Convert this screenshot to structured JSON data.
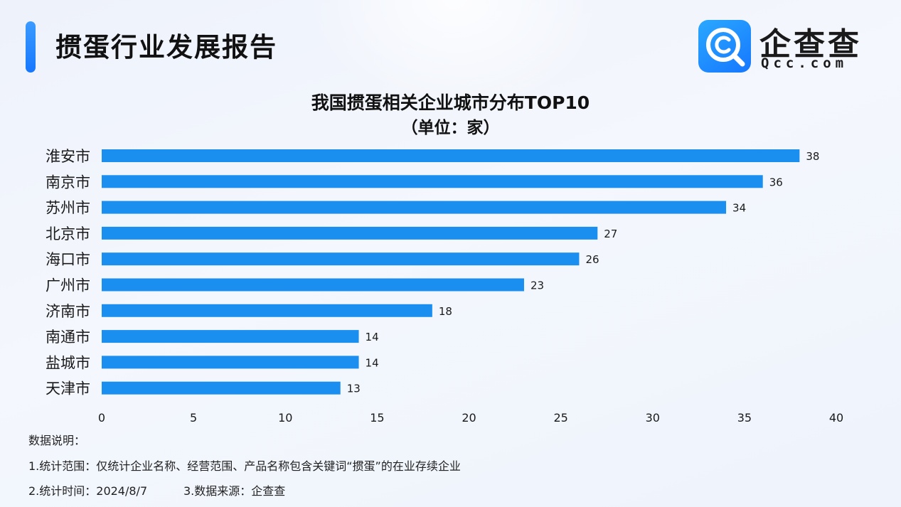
{
  "header": {
    "title": "掼蛋行业发展报告"
  },
  "logo": {
    "name": "企查查",
    "domain": "Qcc.com",
    "icon": "magnifier-c-icon",
    "color": "#1677ff"
  },
  "chart_data": {
    "type": "bar",
    "orientation": "horizontal",
    "title": "我国掼蛋相关企业城市分布TOP10",
    "subtitle": "（单位：家）",
    "categories": [
      "淮安市",
      "南京市",
      "苏州市",
      "北京市",
      "海口市",
      "广州市",
      "济南市",
      "南通市",
      "盐城市",
      "天津市"
    ],
    "values": [
      38,
      36,
      34,
      27,
      26,
      23,
      18,
      14,
      14,
      13
    ],
    "xlim": [
      0,
      40
    ],
    "xticks": [
      0,
      5,
      10,
      15,
      20,
      25,
      30,
      35,
      40
    ],
    "grid": false,
    "bar_color": "#1b8ff0"
  },
  "notes": {
    "heading": "数据说明：",
    "line1": "1.统计范围：仅统计企业名称、经营范围、产品名称包含关键词“掼蛋”的在业存续企业",
    "line2a": "2.统计时间：2024/8/7",
    "line2b": "3.数据来源：企查查"
  }
}
